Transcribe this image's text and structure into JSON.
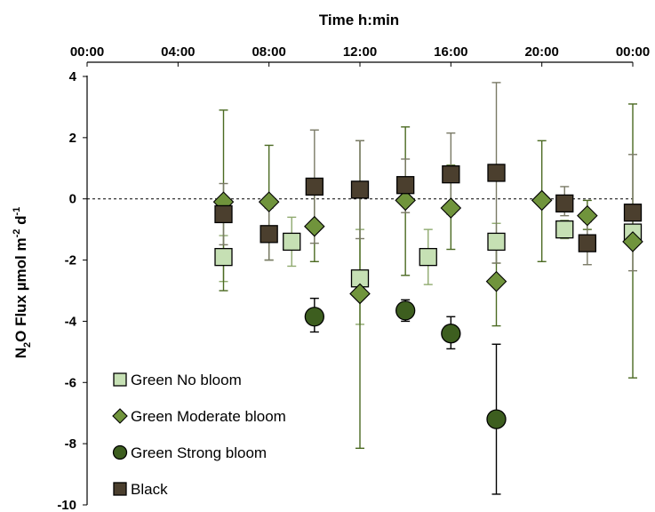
{
  "chart_data": {
    "type": "scatter",
    "title": "",
    "xlabel": "Time h:min",
    "ylabel": {
      "main": "N",
      "sub2": "2",
      "mid": "O Flux µmol m",
      "sup1": "-2",
      "mid2": " d",
      "sup2": "-1"
    },
    "x_unit": "hours",
    "xlim": [
      0,
      24
    ],
    "ylim": [
      -10,
      4
    ],
    "x_ticks": [
      {
        "value": 0,
        "label": "00:00"
      },
      {
        "value": 4,
        "label": "04:00"
      },
      {
        "value": 8,
        "label": "08:00"
      },
      {
        "value": 12,
        "label": "12:00"
      },
      {
        "value": 16,
        "label": "16:00"
      },
      {
        "value": 20,
        "label": "20:00"
      },
      {
        "value": 24,
        "label": "00:00"
      }
    ],
    "y_ticks": [
      4,
      2,
      0,
      -2,
      -4,
      -6,
      -8,
      -10
    ],
    "reference_line": {
      "y": 0,
      "style": "dashed"
    },
    "legend_position": "bottom-left",
    "series": [
      {
        "name": "Green No bloom",
        "marker": "square",
        "fill": "#c6e0b4",
        "error_color": "#8faa6e",
        "points": [
          {
            "x": 6,
            "y": -1.9,
            "lo": -2.7,
            "hi": -1.2
          },
          {
            "x": 9,
            "y": -1.4,
            "lo": -2.2,
            "hi": -0.6
          },
          {
            "x": 12,
            "y": -2.6,
            "lo": -4.1,
            "hi": -1.0
          },
          {
            "x": 15,
            "y": -1.9,
            "lo": -2.8,
            "hi": -1.0
          },
          {
            "x": 18,
            "y": -1.4,
            "lo": -2.1,
            "hi": -0.8
          },
          {
            "x": 21,
            "y": -1.0,
            "lo": -1.3,
            "hi": -0.7
          },
          {
            "x": 24,
            "y": -1.1,
            "lo": -1.5,
            "hi": -0.7
          }
        ]
      },
      {
        "name": "Green Moderate bloom",
        "marker": "diamond",
        "fill": "#70943c",
        "error_color": "#4b6a22",
        "points": [
          {
            "x": 6,
            "y": -0.1,
            "lo": -3.0,
            "hi": 2.9
          },
          {
            "x": 8,
            "y": -0.1,
            "lo": -2.0,
            "hi": 1.75
          },
          {
            "x": 10,
            "y": -0.9,
            "lo": -2.05,
            "hi": 0.3
          },
          {
            "x": 12,
            "y": -3.1,
            "lo": -8.15,
            "hi": 1.9
          },
          {
            "x": 14,
            "y": -0.05,
            "lo": -2.5,
            "hi": 2.35
          },
          {
            "x": 16,
            "y": -0.3,
            "lo": -1.65,
            "hi": 1.1
          },
          {
            "x": 18,
            "y": -2.7,
            "lo": -4.15,
            "hi": -1.2
          },
          {
            "x": 20,
            "y": -0.05,
            "lo": -2.05,
            "hi": 1.9
          },
          {
            "x": 22,
            "y": -0.55,
            "lo": -1.0,
            "hi": -0.05
          },
          {
            "x": 24,
            "y": -1.4,
            "lo": -5.85,
            "hi": 3.1
          }
        ]
      },
      {
        "name": "Green Strong bloom",
        "marker": "circle",
        "fill": "#3d5e1f",
        "error_color": "#000000",
        "points": [
          {
            "x": 10,
            "y": -3.85,
            "lo": -4.35,
            "hi": -3.25
          },
          {
            "x": 14,
            "y": -3.65,
            "lo": -4.0,
            "hi": -3.3
          },
          {
            "x": 16,
            "y": -4.4,
            "lo": -4.9,
            "hi": -3.85
          },
          {
            "x": 18,
            "y": -7.2,
            "lo": -9.65,
            "hi": -4.75
          }
        ]
      },
      {
        "name": "Black",
        "marker": "square",
        "fill": "#4b3f2e",
        "error_color": "#7a7a66",
        "points": [
          {
            "x": 6,
            "y": -0.5,
            "lo": -1.5,
            "hi": 0.5
          },
          {
            "x": 8,
            "y": -1.15,
            "lo": -2.0,
            "hi": -0.3
          },
          {
            "x": 10,
            "y": 0.4,
            "lo": -1.45,
            "hi": 2.25
          },
          {
            "x": 12,
            "y": 0.3,
            "lo": -1.3,
            "hi": 1.9
          },
          {
            "x": 14,
            "y": 0.45,
            "lo": -0.45,
            "hi": 1.3
          },
          {
            "x": 16,
            "y": 0.8,
            "lo": -0.5,
            "hi": 2.15
          },
          {
            "x": 18,
            "y": 0.85,
            "lo": -2.1,
            "hi": 3.8
          },
          {
            "x": 21,
            "y": -0.15,
            "lo": -0.55,
            "hi": 0.4
          },
          {
            "x": 22,
            "y": -1.45,
            "lo": -2.15,
            "hi": -0.75
          },
          {
            "x": 24,
            "y": -0.45,
            "lo": -2.35,
            "hi": 1.45
          }
        ]
      }
    ]
  }
}
